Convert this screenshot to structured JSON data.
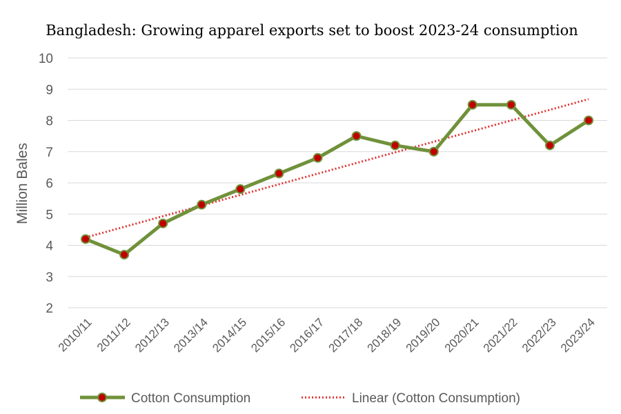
{
  "chart_data": {
    "type": "line",
    "title": "Bangladesh: Growing apparel exports set to boost 2023-24 consumption",
    "xlabel": "",
    "ylabel": "Million Bales",
    "ylim": [
      2,
      10
    ],
    "yticks": [
      2,
      3,
      4,
      5,
      6,
      7,
      8,
      9,
      10
    ],
    "grid": true,
    "legend_position": "bottom",
    "categories": [
      "2010/11",
      "2011/12",
      "2012/13",
      "2013/14",
      "2014/15",
      "2015/16",
      "2016/17",
      "2017/18",
      "2018/19",
      "2019/20",
      "2020/21",
      "2021/22",
      "2022/23",
      "2023/24"
    ],
    "series": [
      {
        "name": "Cotton Consumption",
        "values": [
          4.2,
          3.7,
          4.7,
          5.3,
          5.8,
          6.3,
          6.8,
          7.5,
          7.2,
          7.0,
          8.5,
          8.5,
          7.2,
          8.0
        ],
        "line_color": "#70913a",
        "marker_color": "#c00000"
      }
    ],
    "trendline": {
      "name": "Linear (Cotton Consumption)",
      "start": 4.25,
      "end": 8.68,
      "color": "#e03131"
    }
  }
}
